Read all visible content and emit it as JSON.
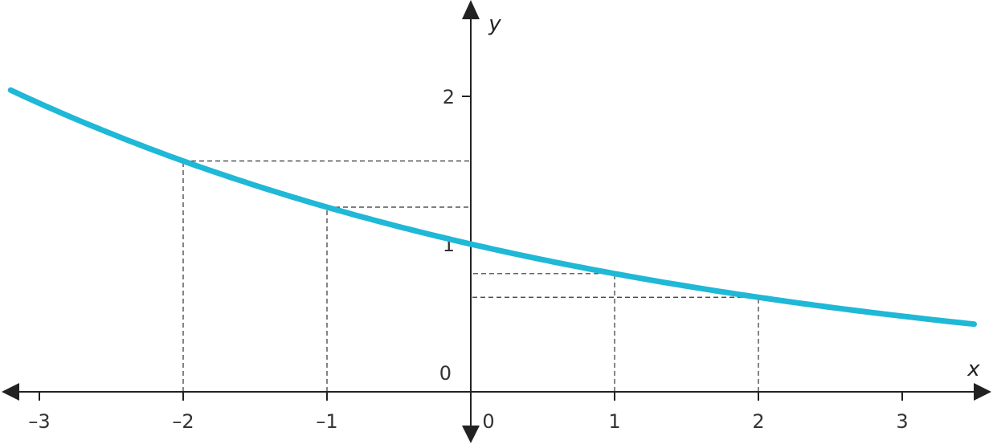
{
  "chart_data": {
    "type": "line",
    "xlabel": "x",
    "ylabel": "y",
    "xlim": [
      -3.2,
      3.5
    ],
    "ylim": [
      -0.3,
      2.6
    ],
    "x_ticks": [
      -3,
      -2,
      -1,
      1,
      2,
      3
    ],
    "x_tick_labels": [
      "–3",
      "–2",
      "–1",
      "1",
      "2",
      "3"
    ],
    "x_origin_label": "0",
    "y_ticks": [
      1,
      2
    ],
    "y_tick_labels": [
      "1",
      "2"
    ],
    "y_origin_label": "0",
    "grid": false,
    "legend": "none",
    "series": [
      {
        "function": "y = (0.8)^x",
        "color": "#1fb8d6",
        "x": [
          -3.2,
          -3,
          -2.5,
          -2,
          -1.5,
          -1,
          -0.5,
          0,
          0.5,
          1,
          1.5,
          2,
          2.5,
          3,
          3.5
        ],
        "y": [
          2.04,
          1.95,
          1.75,
          1.5625,
          1.4,
          1.25,
          1.12,
          1.0,
          0.89,
          0.8,
          0.72,
          0.64,
          0.57,
          0.51,
          0.46
        ]
      }
    ],
    "highlighted_points": [
      {
        "x": -2,
        "y": 1.5625
      },
      {
        "x": -1,
        "y": 1.25
      },
      {
        "x": 1,
        "y": 0.8
      },
      {
        "x": 2,
        "y": 0.64
      }
    ]
  }
}
